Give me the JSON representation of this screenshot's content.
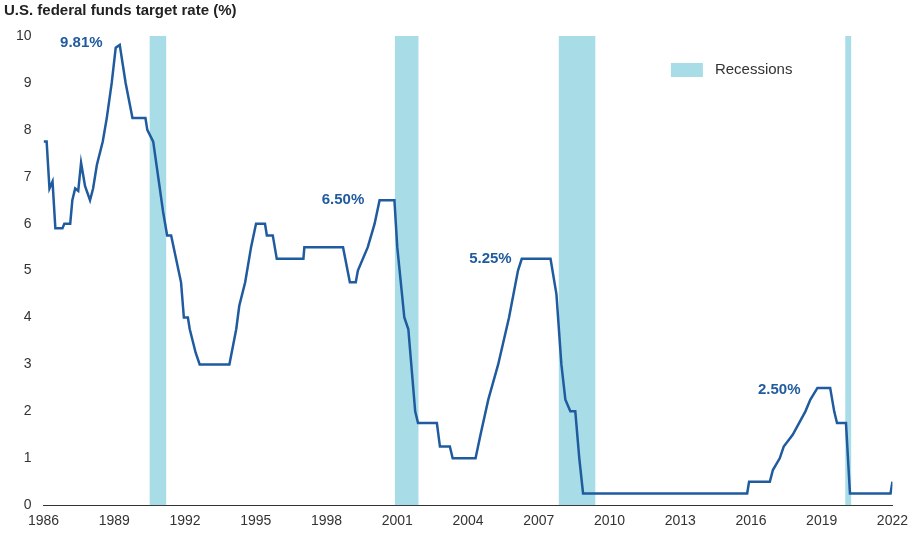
{
  "chart_data": {
    "type": "line",
    "title": "U.S. federal funds target rate (%)",
    "color": "#1f5b9e",
    "x": [
      1986.0,
      1986.13,
      1986.25,
      1986.38,
      1986.5,
      1986.8,
      1986.88,
      1987.13,
      1987.22,
      1987.34,
      1987.47,
      1987.59,
      1987.76,
      1987.97,
      1988.1,
      1988.26,
      1988.51,
      1988.68,
      1988.89,
      1989.06,
      1989.23,
      1989.48,
      1989.77,
      1990.32,
      1990.4,
      1990.65,
      1990.86,
      1991.07,
      1991.24,
      1991.41,
      1991.83,
      1991.95,
      1992.12,
      1992.2,
      1992.45,
      1992.62,
      1993.88,
      1994.17,
      1994.3,
      1994.55,
      1994.8,
      1995.01,
      1995.39,
      1995.47,
      1995.72,
      1995.89,
      1997.02,
      1997.06,
      1998.7,
      1998.99,
      1999.24,
      1999.33,
      1999.75,
      2000.04,
      2000.25,
      2000.88,
      2001.0,
      2001.3,
      2001.47,
      2001.76,
      2001.88,
      2002.68,
      2002.81,
      2003.23,
      2003.35,
      2004.32,
      2004.53,
      2004.86,
      2005.28,
      2005.74,
      2006.12,
      2006.28,
      2007.5,
      2007.75,
      2007.96,
      2008.13,
      2008.34,
      2008.55,
      2008.72,
      2008.88,
      2015.84,
      2015.92,
      2016.8,
      2016.93,
      2017.22,
      2017.39,
      2017.77,
      2018.31,
      2018.52,
      2018.82,
      2019.36,
      2019.53,
      2019.65,
      2020.03,
      2020.2,
      2021.92,
      2022.0
    ],
    "values": [
      7.75,
      7.75,
      6.75,
      6.9,
      5.9,
      5.9,
      6.0,
      6.0,
      6.5,
      6.75,
      6.7,
      7.3,
      6.8,
      6.5,
      6.75,
      7.25,
      7.75,
      8.25,
      9.0,
      9.75,
      9.81,
      9.0,
      8.25,
      8.25,
      8.0,
      7.75,
      7.0,
      6.25,
      5.75,
      5.75,
      4.75,
      4.0,
      4.0,
      3.75,
      3.25,
      3.0,
      3.0,
      3.75,
      4.25,
      4.75,
      5.5,
      6.0,
      6.0,
      5.75,
      5.75,
      5.25,
      5.25,
      5.5,
      5.5,
      4.75,
      4.75,
      5.0,
      5.5,
      6.0,
      6.5,
      6.5,
      5.5,
      4.0,
      3.75,
      2.0,
      1.75,
      1.75,
      1.25,
      1.25,
      1.0,
      1.0,
      1.5,
      2.25,
      3.0,
      4.0,
      5.0,
      5.25,
      5.25,
      4.5,
      3.0,
      2.25,
      2.0,
      2.0,
      1.0,
      0.25,
      0.25,
      0.5,
      0.5,
      0.75,
      1.0,
      1.25,
      1.5,
      2.0,
      2.25,
      2.5,
      2.5,
      2.0,
      1.75,
      1.75,
      0.25,
      0.25,
      0.5
    ],
    "xlim": [
      1986,
      2022
    ],
    "xticks": [
      1986,
      1989,
      1992,
      1995,
      1998,
      2001,
      2004,
      2007,
      2010,
      2013,
      2016,
      2019,
      2022
    ],
    "ylim": [
      0,
      10
    ],
    "yticks": [
      0,
      1,
      2,
      3,
      4,
      5,
      6,
      7,
      8,
      9,
      10
    ],
    "grid": false,
    "legend": "upper right",
    "recessions": {
      "name": "Recessions",
      "color": "#a8dde8",
      "periods": [
        [
          1990.5,
          1991.2
        ],
        [
          2000.9,
          2001.9
        ],
        [
          2007.85,
          2009.4
        ],
        [
          2020.0,
          2020.25
        ]
      ]
    },
    "annotations": [
      {
        "text": "9.81%",
        "x": 1987.6,
        "y": 9.85
      },
      {
        "text": "6.50%",
        "x": 1998.7,
        "y": 6.5
      },
      {
        "text": "5.25%",
        "x": 2004.95,
        "y": 5.25
      },
      {
        "text": "2.50%",
        "x": 2017.2,
        "y": 2.45
      }
    ]
  }
}
